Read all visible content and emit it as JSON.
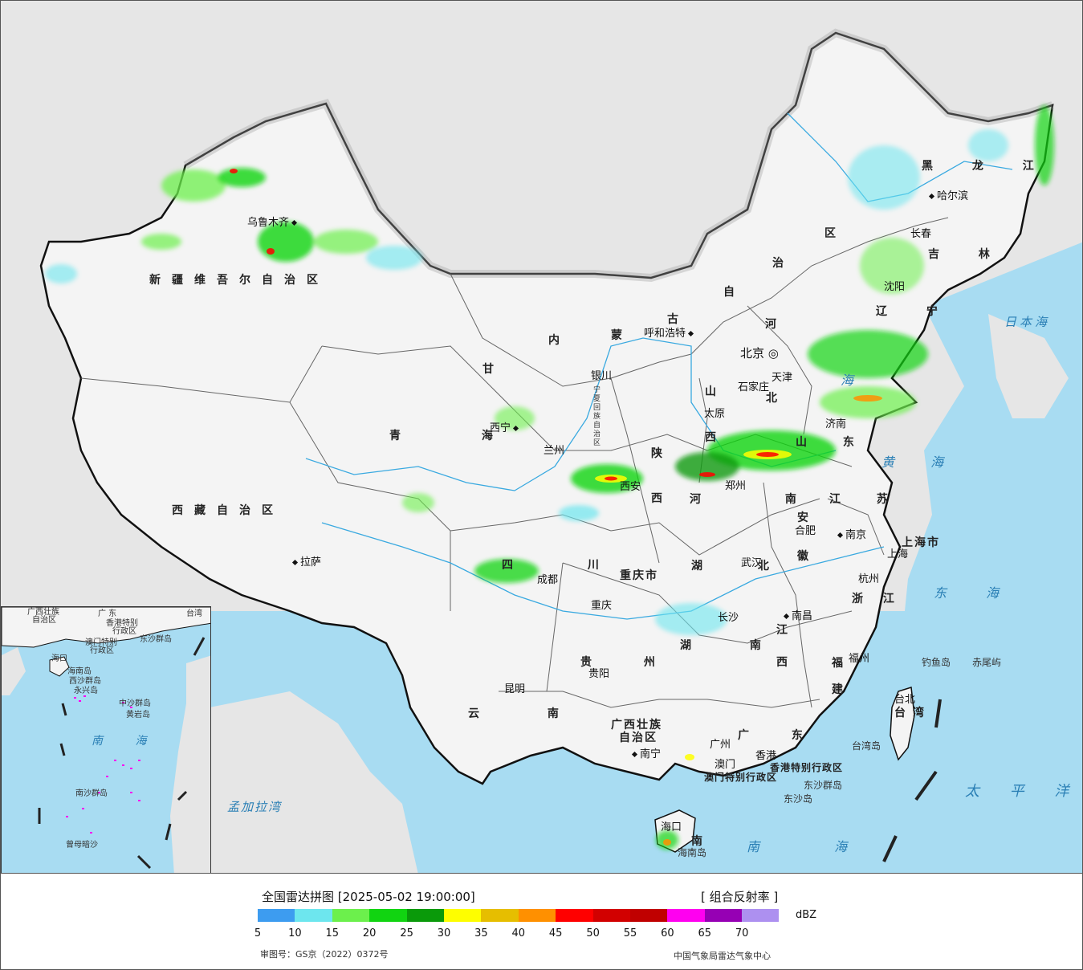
{
  "legend": {
    "title": "全国雷达拼图 [2025-05-02 19:00:00]",
    "product": "[ 组合反射率 ]",
    "unit": "dBZ",
    "ticks": [
      "5",
      "10",
      "15",
      "20",
      "25",
      "30",
      "35",
      "40",
      "45",
      "50",
      "55",
      "60",
      "65",
      "70"
    ],
    "colors": [
      "#3d9cf0",
      "#6de6ee",
      "#6cf04c",
      "#11d411",
      "#0a9a0a",
      "#fefe00",
      "#e6be00",
      "#ff9000",
      "#ff0000",
      "#d20000",
      "#c00000",
      "#ff00f0",
      "#9600b4",
      "#ad90f0"
    ],
    "approval_no": "审图号：GS京（2022）0372号",
    "agency": "中国气象局雷达气象中心"
  },
  "map": {
    "provinces": [
      {
        "id": "xinjiang",
        "text": "新疆维吾尔自治区"
      },
      {
        "id": "xizang",
        "text": "西藏自治区"
      },
      {
        "id": "qinghai",
        "text": "青 海"
      },
      {
        "id": "gansu",
        "text": "甘"
      },
      {
        "id": "neimenggu-nei",
        "text": "内"
      },
      {
        "id": "neimenggu-meng",
        "text": "蒙"
      },
      {
        "id": "neimenggu-gu",
        "text": "古"
      },
      {
        "id": "neimenggu-zi",
        "text": "自"
      },
      {
        "id": "neimenggu-zhi",
        "text": "治"
      },
      {
        "id": "neimenggu-qu",
        "text": "区"
      },
      {
        "id": "heilongjiang",
        "text": "黑 龙 江"
      },
      {
        "id": "jilin",
        "text": "吉 林"
      },
      {
        "id": "liaoning",
        "text": "辽 宁"
      },
      {
        "id": "hebei-he",
        "text": "河"
      },
      {
        "id": "hebei-bei",
        "text": "北"
      },
      {
        "id": "shanxi-shan",
        "text": "山"
      },
      {
        "id": "shanxi-xi",
        "text": "西"
      },
      {
        "id": "shaanxi-shan",
        "text": "陕"
      },
      {
        "id": "shaanxi-xi",
        "text": "西"
      },
      {
        "id": "shandong",
        "text": "山 东"
      },
      {
        "id": "henan",
        "text": "河 南"
      },
      {
        "id": "jiangsu",
        "text": "江 苏"
      },
      {
        "id": "anhui-an",
        "text": "安"
      },
      {
        "id": "anhui-hui",
        "text": "徽"
      },
      {
        "id": "shanghai",
        "text": "上海市"
      },
      {
        "id": "zhejiang",
        "text": "浙 江"
      },
      {
        "id": "hubei",
        "text": "湖 北"
      },
      {
        "id": "hunan",
        "text": "湖 南"
      },
      {
        "id": "jiangxi-jiang",
        "text": "江"
      },
      {
        "id": "jiangxi-xi",
        "text": "西"
      },
      {
        "id": "fujian-fu",
        "text": "福"
      },
      {
        "id": "fujian-jian",
        "text": "建"
      },
      {
        "id": "taiwan",
        "text": "台 湾"
      },
      {
        "id": "guangdong",
        "text": "广 东"
      },
      {
        "id": "guangxi-1",
        "text": "广西壮族"
      },
      {
        "id": "guangxi-2",
        "text": "自治区"
      },
      {
        "id": "guizhou",
        "text": "贵 州"
      },
      {
        "id": "yunnan",
        "text": "云 南"
      },
      {
        "id": "sichuan",
        "text": "四 川"
      },
      {
        "id": "chongqing",
        "text": "重庆市"
      },
      {
        "id": "hainan",
        "text": "南"
      },
      {
        "id": "hongkong",
        "text": "香港特别行政区"
      },
      {
        "id": "macau",
        "text": "澳门特别行政区"
      },
      {
        "id": "ningxia",
        "text": "宁夏回族自治区"
      }
    ],
    "cities": [
      {
        "id": "urumqi",
        "text": "乌鲁木齐"
      },
      {
        "id": "lhasa",
        "text": "拉萨"
      },
      {
        "id": "xining",
        "text": "西宁"
      },
      {
        "id": "lanzhou",
        "text": "兰州"
      },
      {
        "id": "yinchuan",
        "text": "银川"
      },
      {
        "id": "hohhot",
        "text": "呼和浩特"
      },
      {
        "id": "beijing",
        "text": "北京"
      },
      {
        "id": "tianjin",
        "text": "天津"
      },
      {
        "id": "shijiazhuang",
        "text": "石家庄"
      },
      {
        "id": "taiyuan",
        "text": "太原"
      },
      {
        "id": "xian",
        "text": "西安"
      },
      {
        "id": "zhengzhou",
        "text": "郑州"
      },
      {
        "id": "jinan",
        "text": "济南"
      },
      {
        "id": "harbin",
        "text": "哈尔滨"
      },
      {
        "id": "changchun",
        "text": "长春"
      },
      {
        "id": "shenyang",
        "text": "沈阳"
      },
      {
        "id": "nanjing",
        "text": "南京"
      },
      {
        "id": "hefei",
        "text": "合肥"
      },
      {
        "id": "shanghai-city",
        "text": "上海"
      },
      {
        "id": "hangzhou",
        "text": "杭州"
      },
      {
        "id": "wuhan",
        "text": "武汉"
      },
      {
        "id": "changsha",
        "text": "长沙"
      },
      {
        "id": "nanchang",
        "text": "南昌"
      },
      {
        "id": "fuzhou",
        "text": "福州"
      },
      {
        "id": "taibei",
        "text": "台北"
      },
      {
        "id": "chengdu",
        "text": "成都"
      },
      {
        "id": "chongqing-city",
        "text": "重庆"
      },
      {
        "id": "guiyang",
        "text": "贵阳"
      },
      {
        "id": "kunming",
        "text": "昆明"
      },
      {
        "id": "nanning",
        "text": "南宁"
      },
      {
        "id": "guangzhou",
        "text": "广州"
      },
      {
        "id": "hongkong-city",
        "text": "香港"
      },
      {
        "id": "macau-city",
        "text": "澳门"
      },
      {
        "id": "haikou",
        "text": "海口"
      }
    ],
    "seas": [
      {
        "id": "japan-sea",
        "text": "日本海"
      },
      {
        "id": "bohai",
        "text": "海"
      },
      {
        "id": "huanghai",
        "text": "黄 海"
      },
      {
        "id": "donghai",
        "text": "东 海"
      },
      {
        "id": "taipingyang",
        "text": "太 平 洋"
      },
      {
        "id": "nanhai",
        "text": "南 海"
      },
      {
        "id": "bengal",
        "text": "孟加拉湾"
      }
    ],
    "islands": [
      {
        "id": "diaoyu",
        "text": "钓鱼岛"
      },
      {
        "id": "chiwei",
        "text": "赤尾屿"
      },
      {
        "id": "taiwan-island",
        "text": "台湾岛"
      },
      {
        "id": "dongsha-qundao",
        "text": "东沙群岛"
      },
      {
        "id": "dongsha-dao",
        "text": "东沙岛"
      },
      {
        "id": "hainan-island",
        "text": "海南岛"
      }
    ],
    "inset": {
      "labels": [
        "广西壮族",
        "自治区",
        "广 东",
        "台湾",
        "香港特别",
        "行政区",
        "澳门特别",
        "行政区",
        "东沙群岛",
        "海口",
        "海南岛",
        "西沙群岛",
        "永兴岛",
        "中沙群岛",
        "黄岩岛",
        "南 海",
        "南沙群岛",
        "曾母暗沙"
      ]
    }
  }
}
